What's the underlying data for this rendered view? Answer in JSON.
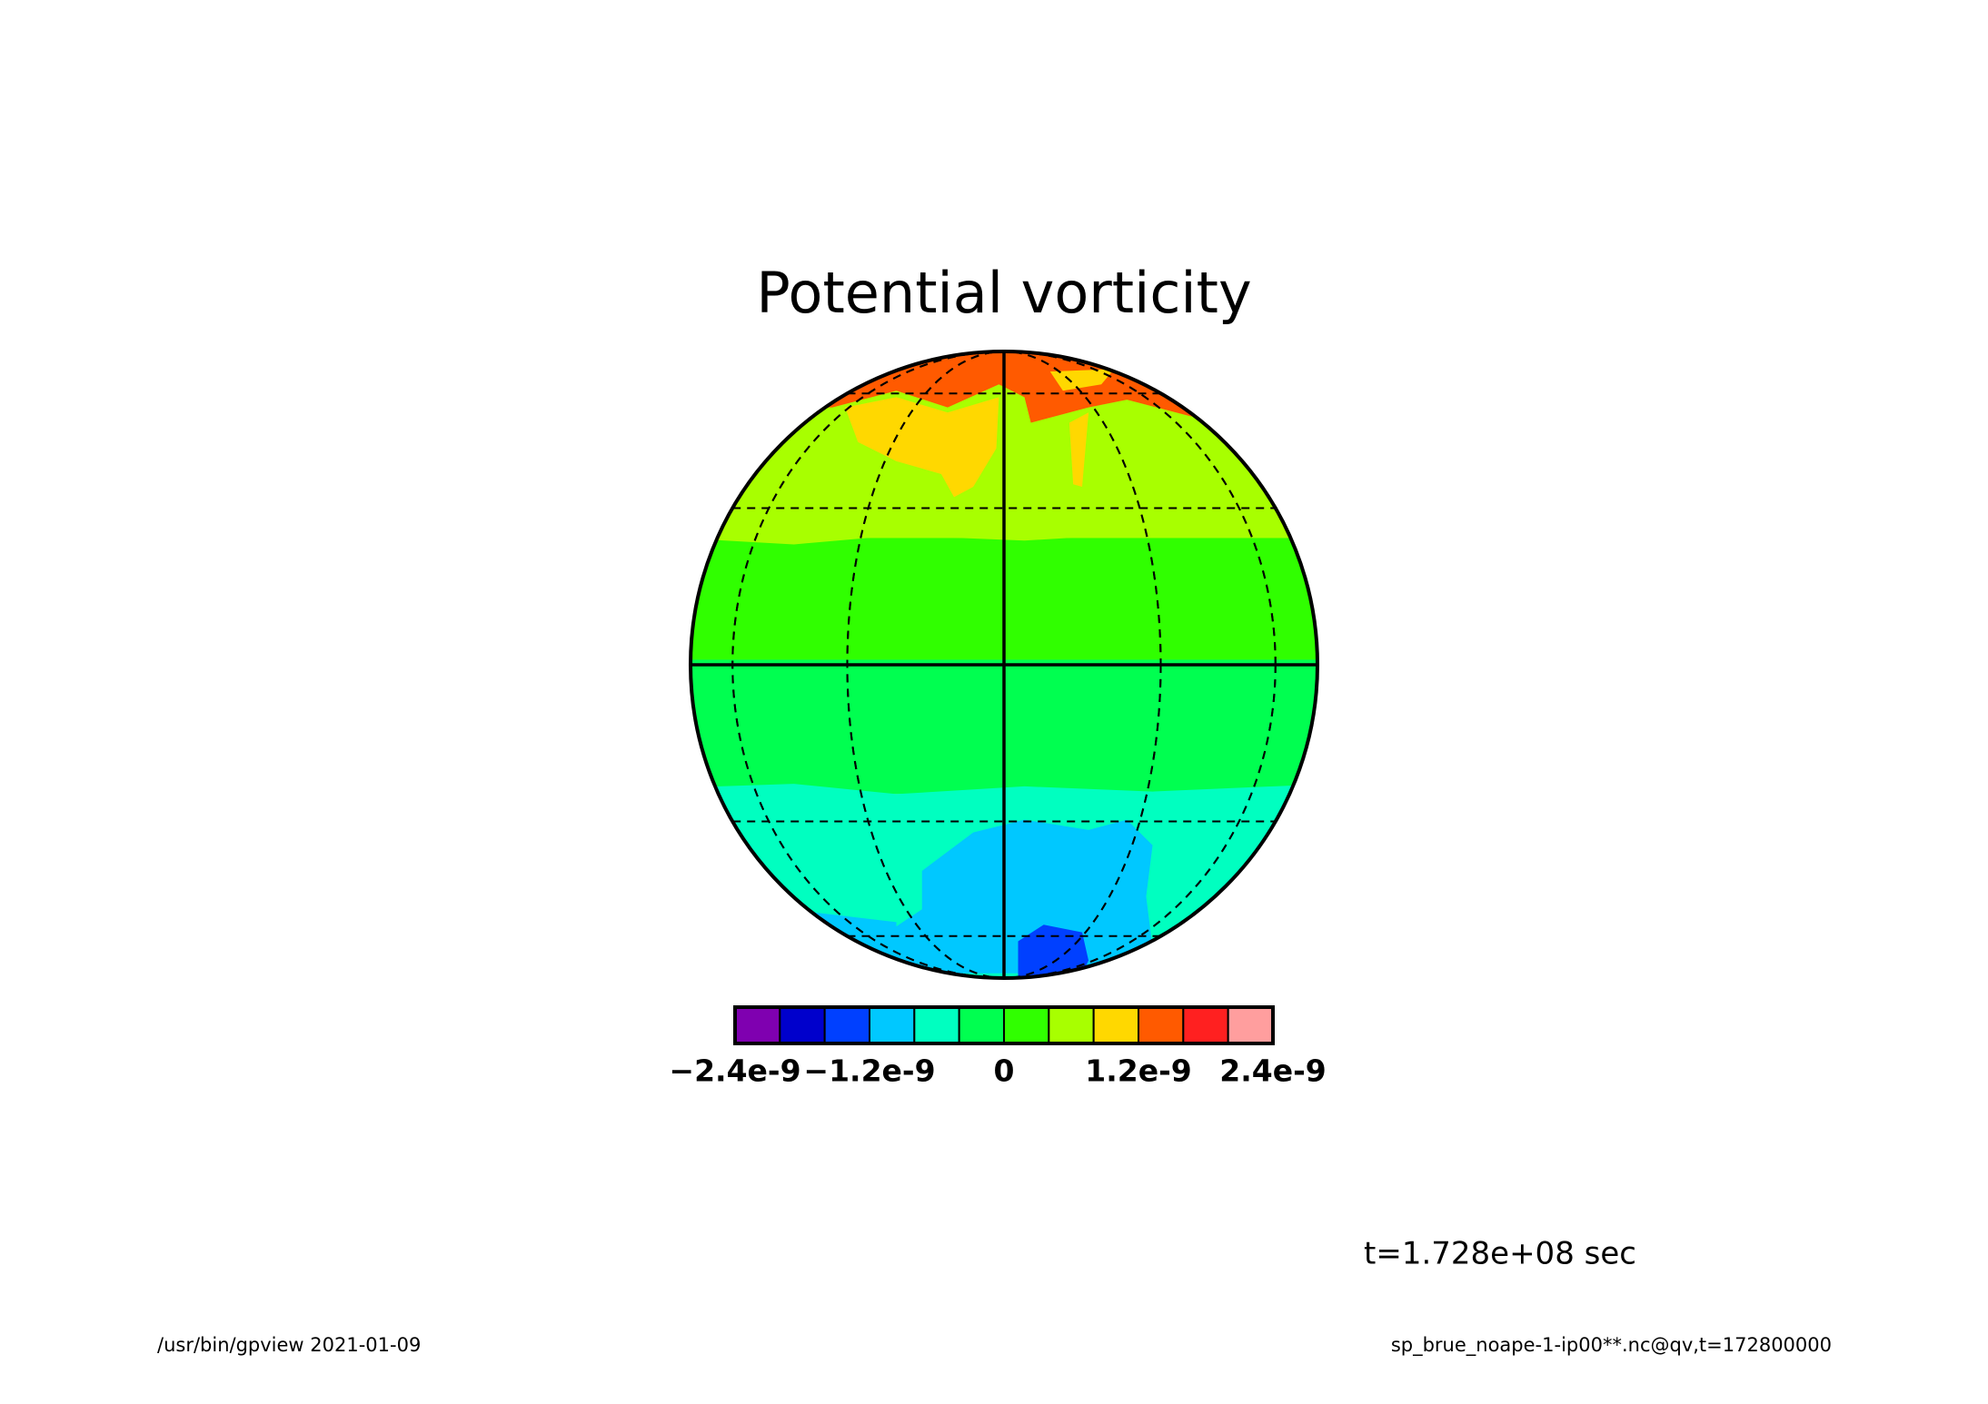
{
  "chart_data": {
    "type": "colormap",
    "title": "Potential vorticity",
    "colorbar": {
      "colors": [
        "#7f00b0",
        "#0000cc",
        "#0040ff",
        "#00c8ff",
        "#00ffc0",
        "#00ff50",
        "#30ff00",
        "#a8ff00",
        "#ffd800",
        "#ff5a00",
        "#ff2020",
        "#ff9e9e"
      ],
      "clim": [
        -2.4e-09,
        2.4e-09
      ],
      "ticks": [
        {
          "value": -2.4e-09,
          "label": "−2.4e-9"
        },
        {
          "value": -1.2e-09,
          "label": "−1.2e-9"
        },
        0,
        {
          "value": 1.2e-09,
          "label": "1.2e-9"
        },
        {
          "value": 2.4e-09,
          "label": "2.4e-9"
        }
      ]
    },
    "time_label": "t=1.728e+08 sec",
    "footer_left": "/usr/bin/gpview  2021-01-09",
    "footer_right": "sp_brue_noape-1-ip00**.nc@qv,t=172800000"
  }
}
